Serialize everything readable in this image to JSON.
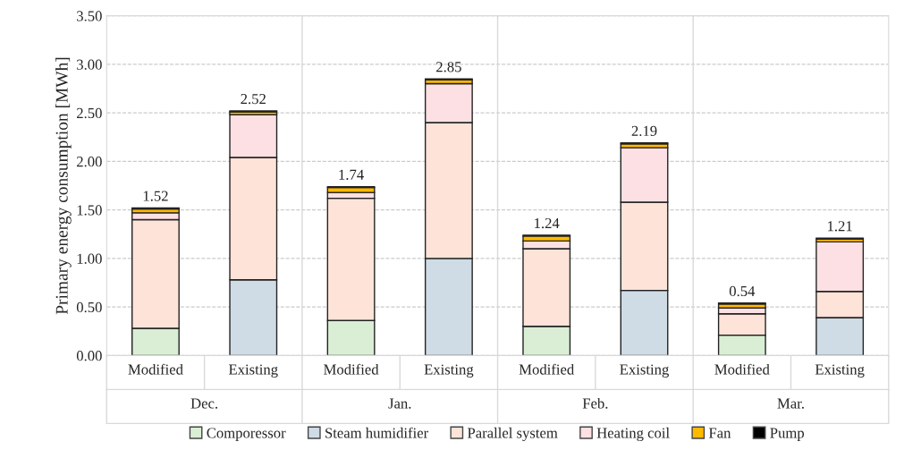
{
  "chart_data": {
    "type": "bar",
    "stacked": true,
    "ylabel": "Primary energy consumption [MWh]",
    "categories": [
      "Modified",
      "Existing",
      "Modified",
      "Existing",
      "Modified",
      "Existing",
      "Modified",
      "Existing"
    ],
    "annotations": [
      "Dec.",
      "Jan.",
      "Feb.",
      "Mar."
    ],
    "series": [
      {
        "name": "Comporessor",
        "color": "#d9eed5",
        "values": [
          0.28,
          null,
          0.36,
          null,
          0.3,
          null,
          0.21,
          null
        ]
      },
      {
        "name": "Steam humidifier",
        "color": "#cfdbe5",
        "values": [
          null,
          0.78,
          null,
          1.0,
          null,
          0.67,
          null,
          0.39
        ]
      },
      {
        "name": "Parallel system",
        "color": "#fde3d8",
        "values": [
          1.12,
          1.26,
          1.26,
          1.4,
          0.8,
          0.91,
          0.22,
          0.27
        ]
      },
      {
        "name": "Heating coil",
        "color": "#fde0e3",
        "values": [
          0.07,
          0.44,
          0.06,
          0.4,
          0.08,
          0.56,
          0.06,
          0.51
        ]
      },
      {
        "name": "Fan",
        "color": "#ffb900",
        "values": [
          0.04,
          0.03,
          0.05,
          0.04,
          0.05,
          0.04,
          0.04,
          0.03
        ]
      },
      {
        "name": "Pump",
        "color": "#000000",
        "values": [
          0.01,
          0.01,
          0.01,
          0.01,
          0.01,
          0.01,
          0.01,
          0.01
        ]
      }
    ],
    "totals": [
      "1.52",
      "2.52",
      "1.74",
      "2.85",
      "1.24",
      "2.19",
      "0.54",
      "1.21"
    ],
    "ylim": [
      0,
      3.5
    ],
    "yticks": [
      {
        "value": 0,
        "label": "0.00"
      },
      {
        "value": 0.5,
        "label": "0.50"
      },
      {
        "value": 1,
        "label": "1.00"
      },
      {
        "value": 1.5,
        "label": "1.50"
      },
      {
        "value": 2,
        "label": "2.00"
      },
      {
        "value": 2.5,
        "label": "2.50"
      },
      {
        "value": 3,
        "label": "3.00"
      },
      {
        "value": 3.5,
        "label": "3.50"
      }
    ],
    "grid": "y",
    "legend": "bottom"
  }
}
